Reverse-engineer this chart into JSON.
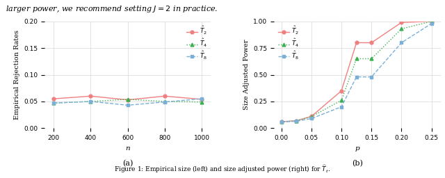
{
  "left": {
    "x": [
      200,
      400,
      600,
      800,
      1000
    ],
    "t2": [
      0.055,
      0.06,
      0.053,
      0.06,
      0.054
    ],
    "t4": [
      0.047,
      0.05,
      0.054,
      0.05,
      0.049
    ],
    "t8": [
      0.047,
      0.05,
      0.043,
      0.049,
      0.055
    ],
    "xlabel": "n",
    "ylabel": "Empirical Rejection Rates",
    "ylim": [
      0.0,
      0.2
    ],
    "yticks": [
      0.0,
      0.05,
      0.1,
      0.15,
      0.2
    ],
    "label_a": "(a)"
  },
  "right": {
    "x": [
      0.0,
      0.025,
      0.05,
      0.1,
      0.125,
      0.15,
      0.2,
      0.25
    ],
    "t2": [
      0.06,
      0.07,
      0.11,
      0.35,
      0.8,
      0.8,
      0.99,
      1.0
    ],
    "t4": [
      0.06,
      0.068,
      0.108,
      0.26,
      0.65,
      0.65,
      0.93,
      1.0
    ],
    "t8": [
      0.058,
      0.065,
      0.09,
      0.2,
      0.48,
      0.48,
      0.8,
      0.98
    ],
    "xlabel": "p",
    "ylabel": "Size Adjusted Power",
    "ylim": [
      0.0,
      1.0
    ],
    "yticks": [
      0.0,
      0.25,
      0.5,
      0.75,
      1.0
    ],
    "label_b": "(b)"
  },
  "legend_labels": [
    "$\\hat{T}_2$",
    "$\\hat{T}_4$",
    "$\\hat{T}_8$"
  ],
  "color_t2": "#f08080",
  "color_t4": "#3cb050",
  "color_t8": "#7ab0d8",
  "fig_caption": "Figure 1: Empirical size (left) and size adjusted power (right) for $\\widehat{T}_t$.",
  "top_text": "larger power, we recommend setting $J=2$ in practice."
}
